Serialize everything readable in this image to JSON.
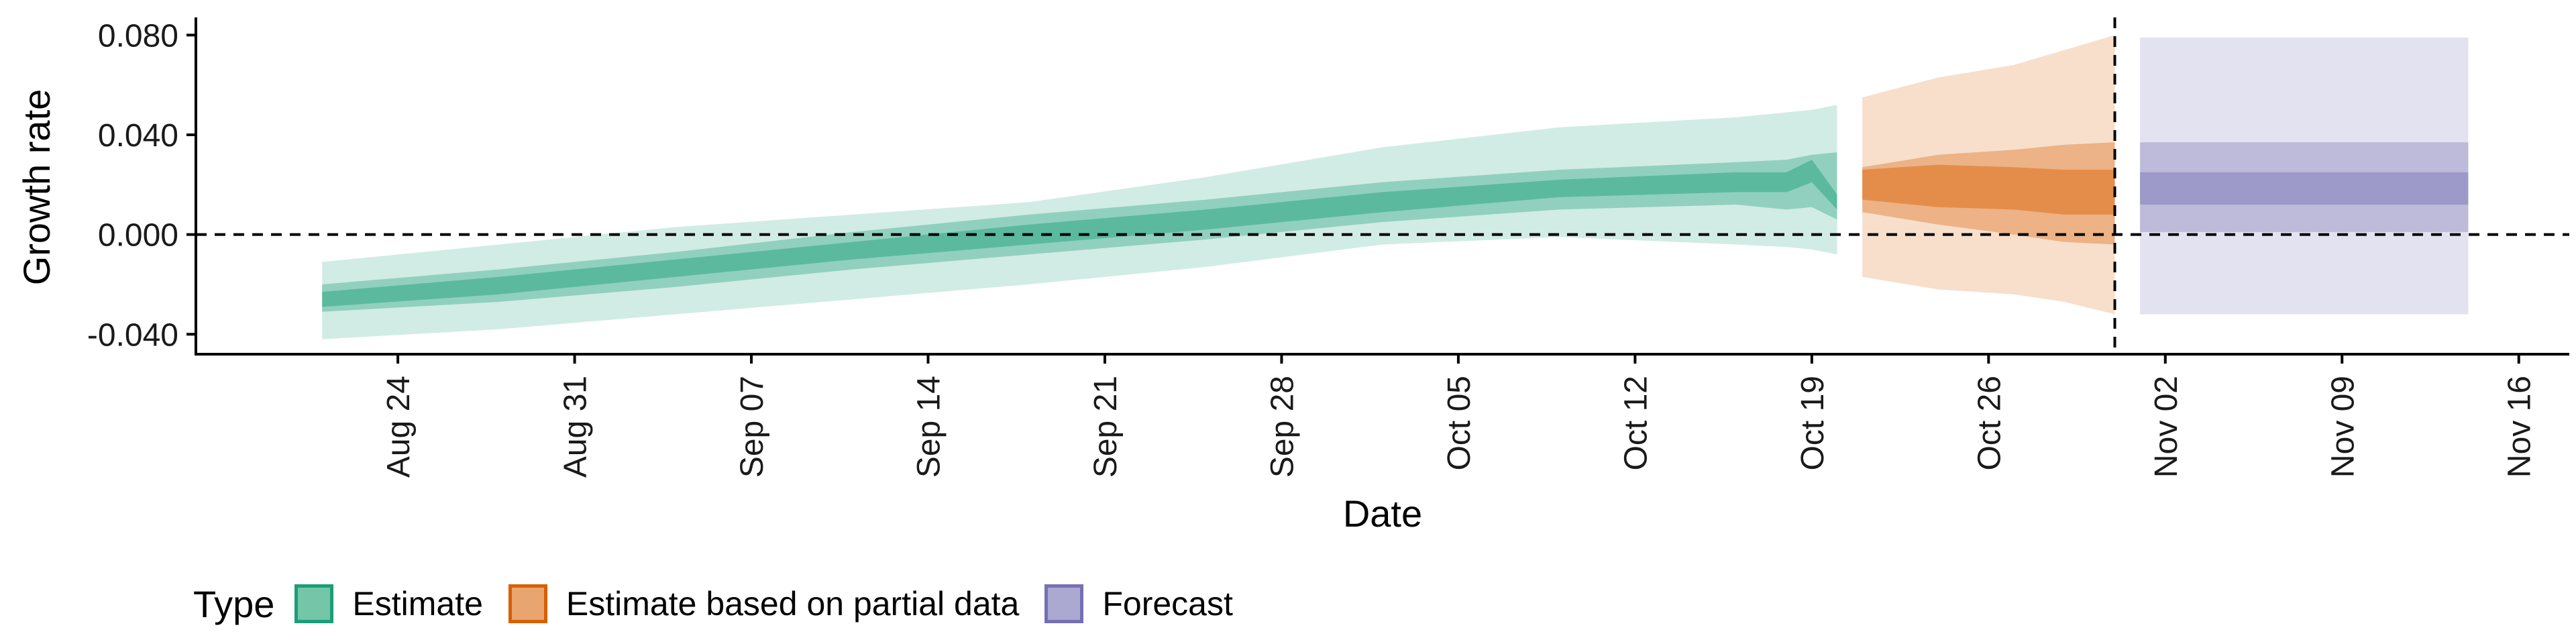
{
  "chart_data": {
    "type": "area",
    "xlabel": "Date",
    "ylabel": "Growth rate",
    "x_ticks": [
      "Aug 24",
      "Aug 31",
      "Sep 07",
      "Sep 14",
      "Sep 21",
      "Sep 28",
      "Oct 05",
      "Oct 12",
      "Oct 19",
      "Oct 26",
      "Nov 02",
      "Nov 09",
      "Nov 16"
    ],
    "x_range": [
      "2020-08-16",
      "2020-11-18"
    ],
    "y_ticks": [
      "-0.040",
      "0.000",
      "0.040",
      "0.080"
    ],
    "y_range": [
      -0.048,
      0.086
    ],
    "reference_lines": {
      "horizontal_y": 0.0,
      "vertical_x": "2020-10-31"
    },
    "grid": false,
    "legend": {
      "position": "bottom-left",
      "title": "Type",
      "entries": [
        {
          "label": "Estimate",
          "fill": "#74c6a9",
          "border": "#1b9e77"
        },
        {
          "label": "Estimate based on partial data",
          "fill": "#e9a56f",
          "border": "#d95f02"
        },
        {
          "label": "Forecast",
          "fill": "#aba8d2",
          "border": "#7570b3"
        }
      ]
    },
    "series": [
      {
        "name": "Estimate",
        "color": "#1b9e77",
        "x": [
          "2020-08-21",
          "2020-08-28",
          "2020-09-04",
          "2020-09-11",
          "2020-09-18",
          "2020-09-25",
          "2020-10-02",
          "2020-10-09",
          "2020-10-16",
          "2020-10-18",
          "2020-10-19",
          "2020-10-20"
        ],
        "median": [
          -0.026,
          -0.02,
          -0.013,
          -0.006,
          0.0,
          0.006,
          0.013,
          0.018,
          0.021,
          0.021,
          0.027,
          0.012
        ],
        "lower_20": [
          -0.029,
          -0.024,
          -0.017,
          -0.01,
          -0.004,
          0.002,
          0.009,
          0.015,
          0.017,
          0.017,
          0.021,
          0.01
        ],
        "upper_20": [
          -0.023,
          -0.017,
          -0.01,
          -0.003,
          0.004,
          0.01,
          0.017,
          0.022,
          0.025,
          0.025,
          0.03,
          0.016
        ],
        "lower_50": [
          -0.031,
          -0.027,
          -0.021,
          -0.014,
          -0.008,
          -0.002,
          0.005,
          0.01,
          0.012,
          0.01,
          0.011,
          0.006
        ],
        "upper_50": [
          -0.02,
          -0.014,
          -0.007,
          0.001,
          0.008,
          0.014,
          0.021,
          0.026,
          0.029,
          0.03,
          0.032,
          0.033
        ],
        "lower_90": [
          -0.042,
          -0.038,
          -0.032,
          -0.026,
          -0.02,
          -0.013,
          -0.004,
          -0.001,
          -0.004,
          -0.005,
          -0.006,
          -0.008
        ],
        "upper_90": [
          -0.011,
          -0.004,
          0.003,
          0.008,
          0.013,
          0.023,
          0.035,
          0.043,
          0.047,
          0.049,
          0.05,
          0.052
        ]
      },
      {
        "name": "Estimate based on partial data",
        "color": "#d95f02",
        "x": [
          "2020-10-21",
          "2020-10-24",
          "2020-10-27",
          "2020-10-29",
          "2020-10-31"
        ],
        "median": [
          0.021,
          0.018,
          0.016,
          0.022,
          0.024
        ],
        "lower_20": [
          0.014,
          0.011,
          0.01,
          0.008,
          0.008
        ],
        "upper_20": [
          0.026,
          0.028,
          0.027,
          0.026,
          0.026
        ],
        "lower_50": [
          0.009,
          0.004,
          0.0,
          -0.003,
          -0.004
        ],
        "upper_50": [
          0.027,
          0.032,
          0.034,
          0.036,
          0.037
        ],
        "lower_90": [
          -0.017,
          -0.022,
          -0.024,
          -0.027,
          -0.032
        ],
        "upper_90": [
          0.055,
          0.063,
          0.068,
          0.074,
          0.08
        ]
      },
      {
        "name": "Forecast",
        "color": "#7570b3",
        "x": [
          "2020-11-01",
          "2020-11-14"
        ],
        "median": [
          0.018,
          0.018
        ],
        "lower_20": [
          0.012,
          0.012
        ],
        "upper_20": [
          0.025,
          0.025
        ],
        "lower_50": [
          0.001,
          0.001
        ],
        "upper_50": [
          0.037,
          0.037
        ],
        "lower_90": [
          -0.032,
          -0.032
        ],
        "upper_90": [
          0.079,
          0.079
        ]
      }
    ]
  }
}
